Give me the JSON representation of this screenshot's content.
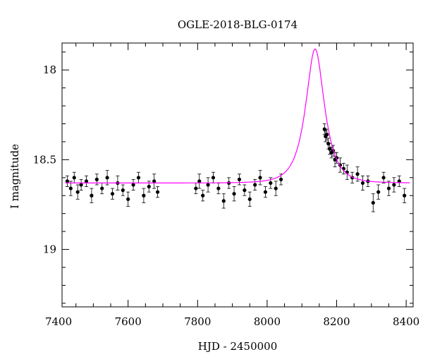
{
  "chart_data": {
    "type": "scatter",
    "title": "OGLE-2018-BLG-0174",
    "xlabel": "HJD - 2450000",
    "ylabel": "I magnitude",
    "xlim": [
      7410,
      8420
    ],
    "ylim": [
      19.32,
      17.85
    ],
    "y_inverted": true,
    "x_ticks": [
      7400,
      7600,
      7800,
      8000,
      8200,
      8400
    ],
    "x_tick_labels": [
      "7400",
      "7600",
      "7800",
      "8000",
      "8200",
      "8400"
    ],
    "y_ticks": [
      18,
      18.5,
      19
    ],
    "y_tick_labels": [
      "18",
      "18.5",
      "19"
    ],
    "grid": false,
    "colors": {
      "data": "#000000",
      "model": "#ff00ff"
    },
    "model": {
      "kind": "microlensing-fit",
      "baseline_mag": 18.63,
      "t0": 8138,
      "tE": 44,
      "u0": 0.56
    },
    "series": [
      {
        "kind": "points-with-errorbars",
        "x": [
          7425,
          7435,
          7445,
          7455,
          7465,
          7480,
          7495,
          7510,
          7525,
          7540,
          7555,
          7570,
          7585,
          7600,
          7615,
          7630,
          7645,
          7660,
          7675,
          7685,
          7795,
          7805,
          7815,
          7830,
          7845,
          7860,
          7875,
          7890,
          7905,
          7920,
          7935,
          7950,
          7965,
          7980,
          7995,
          8010,
          8025,
          8040,
          8165,
          8168,
          8172,
          8176,
          8180,
          8185,
          8190,
          8195,
          8200,
          8210,
          8220,
          8230,
          8245,
          8260,
          8275,
          8290,
          8305,
          8320,
          8335,
          8350,
          8365,
          8380,
          8395
        ],
        "y": [
          18.62,
          18.66,
          18.6,
          18.68,
          18.64,
          18.62,
          18.7,
          18.61,
          18.66,
          18.6,
          18.69,
          18.63,
          18.67,
          18.72,
          18.64,
          18.6,
          18.7,
          18.65,
          18.62,
          18.68,
          18.66,
          18.62,
          18.7,
          18.64,
          18.6,
          18.66,
          18.73,
          18.63,
          18.69,
          18.61,
          18.67,
          18.72,
          18.64,
          18.6,
          18.68,
          18.63,
          18.66,
          18.61,
          18.33,
          18.37,
          18.36,
          18.41,
          18.44,
          18.46,
          18.45,
          18.5,
          18.49,
          18.53,
          18.55,
          18.57,
          18.6,
          18.58,
          18.63,
          18.62,
          18.74,
          18.68,
          18.6,
          18.66,
          18.64,
          18.62,
          18.7
        ],
        "err": [
          0.03,
          0.04,
          0.03,
          0.04,
          0.03,
          0.03,
          0.04,
          0.03,
          0.03,
          0.04,
          0.03,
          0.04,
          0.03,
          0.04,
          0.03,
          0.03,
          0.04,
          0.03,
          0.04,
          0.03,
          0.03,
          0.04,
          0.03,
          0.04,
          0.03,
          0.03,
          0.04,
          0.03,
          0.04,
          0.03,
          0.03,
          0.04,
          0.03,
          0.04,
          0.03,
          0.03,
          0.04,
          0.03,
          0.03,
          0.03,
          0.03,
          0.03,
          0.03,
          0.03,
          0.03,
          0.04,
          0.03,
          0.04,
          0.03,
          0.04,
          0.03,
          0.04,
          0.04,
          0.03,
          0.05,
          0.04,
          0.03,
          0.04,
          0.04,
          0.03,
          0.04
        ]
      }
    ]
  }
}
